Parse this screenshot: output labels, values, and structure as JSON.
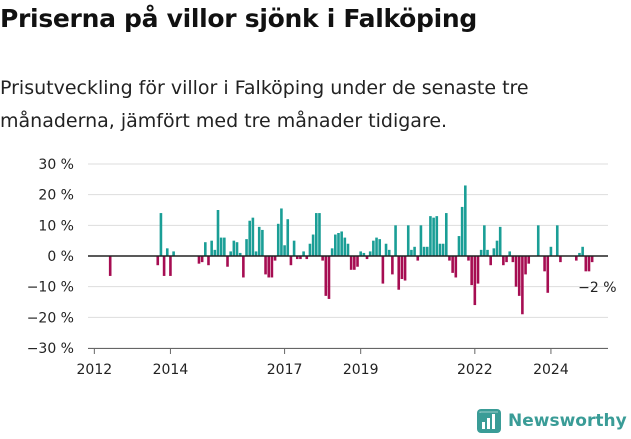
{
  "header": {
    "title": "Priserna på villor sjönk i Falköping",
    "subtitle": "Prisutveckling för villor i Falköping under de senaste tre månaderna, jämfört med tre månader tidigare."
  },
  "brand": {
    "name": "Newsworthy",
    "icon": "newsworthy-chart-logo"
  },
  "colors": {
    "positive": "#1a9e96",
    "negative": "#a60d52",
    "zero_line": "#222222",
    "grid": "#dddddd",
    "brand": "#3a9c97"
  },
  "chart_data": {
    "type": "bar",
    "ylim": [
      -30,
      30
    ],
    "y_ticks": [
      {
        "value": 30,
        "label": "30 %"
      },
      {
        "value": 20,
        "label": "20 %"
      },
      {
        "value": 10,
        "label": "10 %"
      },
      {
        "value": 0,
        "label": "0 %"
      },
      {
        "value": -10,
        "label": "−10 %"
      },
      {
        "value": -20,
        "label": "−20 %"
      },
      {
        "value": -30,
        "label": "−30 %"
      }
    ],
    "x_ticks": [
      {
        "date": "2012-01",
        "label": "2012"
      },
      {
        "date": "2014-01",
        "label": "2014"
      },
      {
        "date": "2017-01",
        "label": "2017"
      },
      {
        "date": "2019-01",
        "label": "2019"
      },
      {
        "date": "2022-01",
        "label": "2022"
      },
      {
        "date": "2024-01",
        "label": "2024"
      }
    ],
    "x_range": [
      "2011-11",
      "2025-07"
    ],
    "grid": true,
    "annotation": {
      "date": "2025-02",
      "value": -2,
      "label": "−2 %"
    },
    "points": [
      {
        "date": "2012-06",
        "value": -6.5
      },
      {
        "date": "2013-09",
        "value": -3
      },
      {
        "date": "2013-10",
        "value": 14
      },
      {
        "date": "2013-11",
        "value": -6.5
      },
      {
        "date": "2013-12",
        "value": 2.5
      },
      {
        "date": "2014-01",
        "value": -6.5
      },
      {
        "date": "2014-02",
        "value": 1.5
      },
      {
        "date": "2014-10",
        "value": -2.5
      },
      {
        "date": "2014-11",
        "value": -2
      },
      {
        "date": "2014-12",
        "value": 4.5
      },
      {
        "date": "2015-01",
        "value": -3
      },
      {
        "date": "2015-02",
        "value": 5
      },
      {
        "date": "2015-03",
        "value": 2
      },
      {
        "date": "2015-04",
        "value": 15
      },
      {
        "date": "2015-05",
        "value": 6
      },
      {
        "date": "2015-06",
        "value": 6
      },
      {
        "date": "2015-07",
        "value": -3.5
      },
      {
        "date": "2015-08",
        "value": 1.5
      },
      {
        "date": "2015-09",
        "value": 5
      },
      {
        "date": "2015-10",
        "value": 4.5
      },
      {
        "date": "2015-11",
        "value": 1
      },
      {
        "date": "2015-12",
        "value": -7
      },
      {
        "date": "2016-01",
        "value": 5.5
      },
      {
        "date": "2016-02",
        "value": 11.5
      },
      {
        "date": "2016-03",
        "value": 12.5
      },
      {
        "date": "2016-04",
        "value": 1.5
      },
      {
        "date": "2016-05",
        "value": 9.5
      },
      {
        "date": "2016-06",
        "value": 8.5
      },
      {
        "date": "2016-07",
        "value": -6
      },
      {
        "date": "2016-08",
        "value": -7
      },
      {
        "date": "2016-09",
        "value": -7
      },
      {
        "date": "2016-10",
        "value": -1.5
      },
      {
        "date": "2016-11",
        "value": 10.5
      },
      {
        "date": "2016-12",
        "value": 15.5
      },
      {
        "date": "2017-01",
        "value": 3.5
      },
      {
        "date": "2017-02",
        "value": 12
      },
      {
        "date": "2017-03",
        "value": -3
      },
      {
        "date": "2017-04",
        "value": 5
      },
      {
        "date": "2017-05",
        "value": -1
      },
      {
        "date": "2017-06",
        "value": -1
      },
      {
        "date": "2017-07",
        "value": 1.5
      },
      {
        "date": "2017-08",
        "value": -1
      },
      {
        "date": "2017-09",
        "value": 4
      },
      {
        "date": "2017-10",
        "value": 7
      },
      {
        "date": "2017-11",
        "value": 14
      },
      {
        "date": "2017-12",
        "value": 14
      },
      {
        "date": "2018-01",
        "value": -1.5
      },
      {
        "date": "2018-02",
        "value": -13
      },
      {
        "date": "2018-03",
        "value": -14
      },
      {
        "date": "2018-04",
        "value": 2.5
      },
      {
        "date": "2018-05",
        "value": 7
      },
      {
        "date": "2018-06",
        "value": 7.5
      },
      {
        "date": "2018-07",
        "value": 8
      },
      {
        "date": "2018-08",
        "value": 6
      },
      {
        "date": "2018-09",
        "value": 4
      },
      {
        "date": "2018-10",
        "value": -4.5
      },
      {
        "date": "2018-11",
        "value": -4.5
      },
      {
        "date": "2018-12",
        "value": -3.5
      },
      {
        "date": "2019-01",
        "value": 1.5
      },
      {
        "date": "2019-02",
        "value": 1
      },
      {
        "date": "2019-03",
        "value": -1
      },
      {
        "date": "2019-04",
        "value": 1.5
      },
      {
        "date": "2019-05",
        "value": 5
      },
      {
        "date": "2019-06",
        "value": 6
      },
      {
        "date": "2019-07",
        "value": 5.5
      },
      {
        "date": "2019-08",
        "value": -9
      },
      {
        "date": "2019-09",
        "value": 4
      },
      {
        "date": "2019-10",
        "value": 2
      },
      {
        "date": "2019-11",
        "value": -6
      },
      {
        "date": "2019-12",
        "value": 10
      },
      {
        "date": "2020-01",
        "value": -11
      },
      {
        "date": "2020-02",
        "value": -7.5
      },
      {
        "date": "2020-03",
        "value": -8
      },
      {
        "date": "2020-04",
        "value": 10
      },
      {
        "date": "2020-05",
        "value": 2
      },
      {
        "date": "2020-06",
        "value": 3
      },
      {
        "date": "2020-07",
        "value": -1.5
      },
      {
        "date": "2020-08",
        "value": 10
      },
      {
        "date": "2020-09",
        "value": 3
      },
      {
        "date": "2020-10",
        "value": 3
      },
      {
        "date": "2020-11",
        "value": 13
      },
      {
        "date": "2020-12",
        "value": 12.5
      },
      {
        "date": "2021-01",
        "value": 13
      },
      {
        "date": "2021-02",
        "value": 4
      },
      {
        "date": "2021-03",
        "value": 4
      },
      {
        "date": "2021-04",
        "value": 14
      },
      {
        "date": "2021-05",
        "value": -1.5
      },
      {
        "date": "2021-06",
        "value": -5.5
      },
      {
        "date": "2021-07",
        "value": -7
      },
      {
        "date": "2021-08",
        "value": 6.5
      },
      {
        "date": "2021-09",
        "value": 16
      },
      {
        "date": "2021-10",
        "value": 23
      },
      {
        "date": "2021-11",
        "value": -1.5
      },
      {
        "date": "2021-12",
        "value": -9.5
      },
      {
        "date": "2022-01",
        "value": -16
      },
      {
        "date": "2022-02",
        "value": -9
      },
      {
        "date": "2022-03",
        "value": 2
      },
      {
        "date": "2022-04",
        "value": 10
      },
      {
        "date": "2022-05",
        "value": 2
      },
      {
        "date": "2022-06",
        "value": -3
      },
      {
        "date": "2022-07",
        "value": 2.5
      },
      {
        "date": "2022-08",
        "value": 5
      },
      {
        "date": "2022-09",
        "value": 9.5
      },
      {
        "date": "2022-10",
        "value": -3
      },
      {
        "date": "2022-11",
        "value": -2
      },
      {
        "date": "2022-12",
        "value": 1.5
      },
      {
        "date": "2023-01",
        "value": -2
      },
      {
        "date": "2023-02",
        "value": -10
      },
      {
        "date": "2023-03",
        "value": -13
      },
      {
        "date": "2023-04",
        "value": -19
      },
      {
        "date": "2023-05",
        "value": -6
      },
      {
        "date": "2023-06",
        "value": -2.5
      },
      {
        "date": "2023-09",
        "value": 10
      },
      {
        "date": "2023-11",
        "value": -5
      },
      {
        "date": "2023-12",
        "value": -12
      },
      {
        "date": "2024-01",
        "value": 3
      },
      {
        "date": "2024-03",
        "value": 10
      },
      {
        "date": "2024-04",
        "value": -2
      },
      {
        "date": "2024-09",
        "value": -1.5
      },
      {
        "date": "2024-10",
        "value": 1
      },
      {
        "date": "2024-11",
        "value": 3
      },
      {
        "date": "2024-12",
        "value": -5
      },
      {
        "date": "2025-01",
        "value": -5
      },
      {
        "date": "2025-02",
        "value": -2
      }
    ]
  }
}
